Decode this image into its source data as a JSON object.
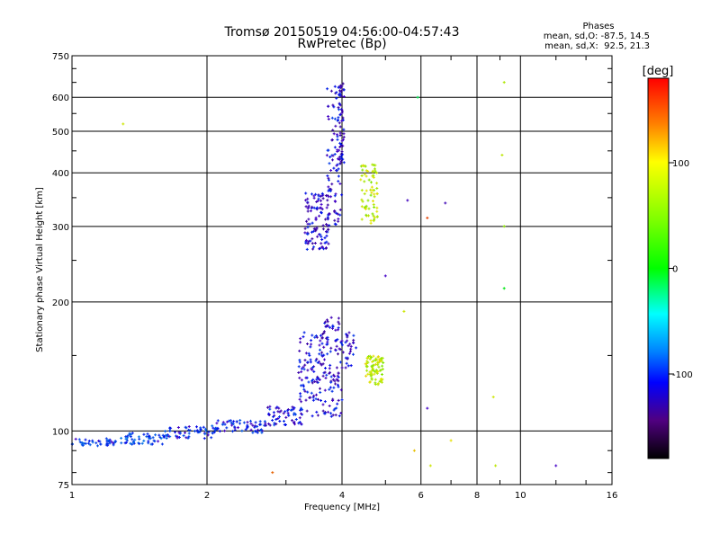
{
  "chart_data": {
    "type": "scatter",
    "title": "Tromsø 20150519 04:56:00-04:57:43",
    "subtitle": "RwPretec (Bp)",
    "xlabel": "Frequency [MHz]",
    "ylabel": "Stationary phase Virtual Height [km]",
    "x_scale": "log",
    "y_scale": "log",
    "xlim": [
      1,
      16
    ],
    "ylim": [
      75,
      750
    ],
    "x_ticks": [
      1,
      2,
      4,
      6,
      8,
      10,
      16
    ],
    "x_tick_labels": [
      "1",
      "2",
      "4",
      "6",
      "8",
      "10",
      "16"
    ],
    "y_ticks": [
      75,
      100,
      200,
      300,
      400,
      500,
      600,
      750
    ],
    "y_tick_labels": [
      "75",
      "100",
      "200",
      "300",
      "400",
      "500",
      "600",
      "750"
    ],
    "grid": true,
    "colorbar": {
      "label": "[deg]",
      "range": [
        -180,
        180
      ],
      "ticks": [
        100,
        0,
        -100
      ],
      "tick_labels": [
        "100",
        "0",
        "-100"
      ]
    },
    "phase_info": {
      "heading": "Phases",
      "line1": "mean, sd,O: -87.5, 14.5",
      "line2": "mean, sd,X:  92.5, 21.3"
    },
    "series": [
      {
        "clusters": [
          {
            "x": [
              1.0,
              1.25
            ],
            "y": [
              92,
              96
            ],
            "phase": -92,
            "n": 40
          },
          {
            "x": [
              1.25,
              1.6
            ],
            "y": [
              93,
              99
            ],
            "phase": -90,
            "n": 50
          },
          {
            "x": [
              1.6,
              2.1
            ],
            "y": [
              96,
              103
            ],
            "phase": -95,
            "n": 60
          },
          {
            "x": [
              2.1,
              2.7
            ],
            "y": [
              99,
              106
            ],
            "phase": -100,
            "n": 60
          },
          {
            "x": [
              2.7,
              3.3
            ],
            "y": [
              103,
              115
            ],
            "phase": -105,
            "n": 60
          },
          {
            "x": [
              3.2,
              3.6
            ],
            "y": [
              108,
              170
            ],
            "phase": -108,
            "n": 90
          },
          {
            "x": [
              3.6,
              4.0
            ],
            "y": [
              108,
              185
            ],
            "phase": -112,
            "n": 110
          },
          {
            "x": [
              4.0,
              4.3
            ],
            "y": [
              140,
              170
            ],
            "phase": -112,
            "n": 30
          },
          {
            "x": [
              3.3,
              3.75
            ],
            "y": [
              265,
              360
            ],
            "phase": -112,
            "n": 110
          },
          {
            "x": [
              3.7,
              4.0
            ],
            "y": [
              300,
              640
            ],
            "phase": -110,
            "n": 100
          },
          {
            "x": [
              3.95,
              4.05
            ],
            "y": [
              420,
              650
            ],
            "phase": -115,
            "n": 40
          }
        ]
      },
      {
        "clusters": [
          {
            "x": [
              4.4,
              4.8
            ],
            "y": [
              305,
              420
            ],
            "phase": 92,
            "n": 70
          },
          {
            "x": [
              4.5,
              4.95
            ],
            "y": [
              128,
              150
            ],
            "phase": 95,
            "n": 80
          }
        ]
      }
    ],
    "scatter_points": [
      {
        "x": 1.3,
        "y": 520,
        "phase": 100
      },
      {
        "x": 2.8,
        "y": 80,
        "phase": 150
      },
      {
        "x": 5.9,
        "y": 600,
        "phase": 10
      },
      {
        "x": 6.2,
        "y": 113,
        "phase": -110
      },
      {
        "x": 6.8,
        "y": 340,
        "phase": -120
      },
      {
        "x": 5.6,
        "y": 345,
        "phase": -115
      },
      {
        "x": 6.2,
        "y": 314,
        "phase": 160
      },
      {
        "x": 5.8,
        "y": 90,
        "phase": 120
      },
      {
        "x": 6.3,
        "y": 83,
        "phase": 100
      },
      {
        "x": 7.0,
        "y": 95,
        "phase": 110
      },
      {
        "x": 8.8,
        "y": 83,
        "phase": 95
      },
      {
        "x": 9.2,
        "y": 650,
        "phase": 90
      },
      {
        "x": 9.1,
        "y": 440,
        "phase": 95
      },
      {
        "x": 9.2,
        "y": 300,
        "phase": 80
      },
      {
        "x": 9.2,
        "y": 215,
        "phase": 30
      },
      {
        "x": 8.7,
        "y": 120,
        "phase": 100
      },
      {
        "x": 12.0,
        "y": 83,
        "phase": -110
      },
      {
        "x": 5.5,
        "y": 190,
        "phase": 100
      },
      {
        "x": 5.0,
        "y": 230,
        "phase": -110
      }
    ]
  }
}
